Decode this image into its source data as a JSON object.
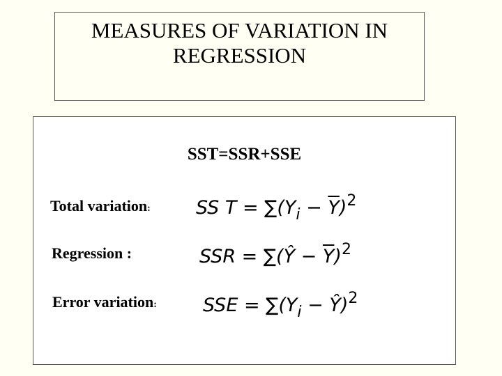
{
  "header": {
    "title_lines": [
      "MEASURES OF VARIATION IN",
      "REGRESSION"
    ]
  },
  "body": {
    "identity": "SST=SSR+SSE",
    "rows": [
      {
        "label": "Total variation",
        "colon": ":",
        "formula": {
          "pre": "SS T = ∑(",
          "a": "Y",
          "sub": "i",
          "mid": " − ",
          "b": "Y",
          "close": ")",
          "sup": "2"
        }
      },
      {
        "label": "Regression :",
        "formula": {
          "pre": "SSR = ∑(",
          "a": "Ŷ",
          "mid": " − ",
          "b": "Y",
          "close": ")",
          "sup": "2"
        }
      },
      {
        "label": "Error variation",
        "colon": ":",
        "formula": {
          "pre": "SSE = ∑(",
          "a": "Y",
          "sub": "i",
          "mid": " − ",
          "b": "Ŷ",
          "close": ")",
          "sup": "2"
        }
      }
    ]
  }
}
